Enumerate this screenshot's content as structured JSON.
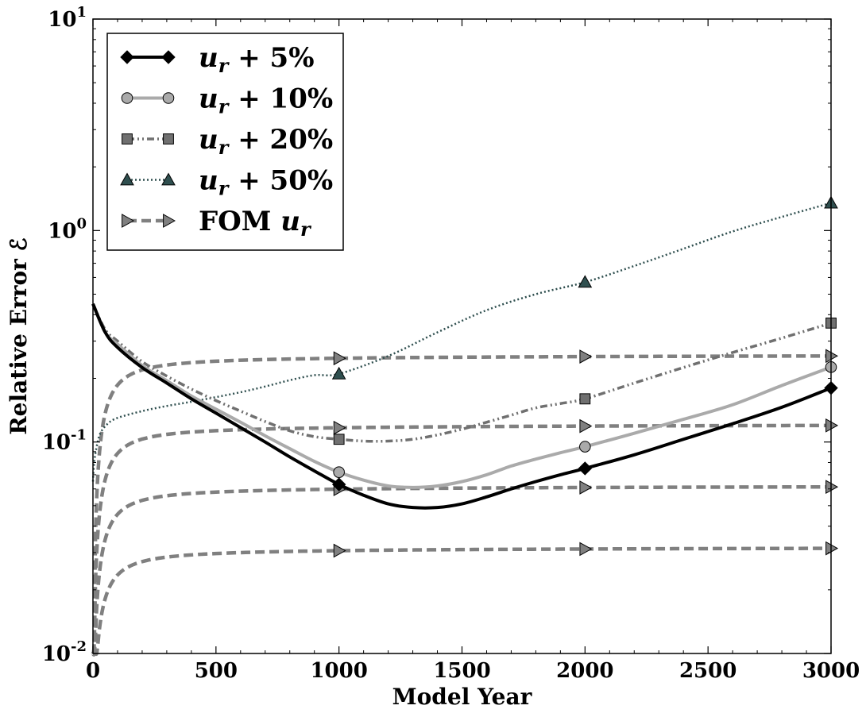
{
  "chart_data": {
    "type": "line",
    "xlabel": "Model Year",
    "ylabel": "Relative Error ℰ",
    "xlim": [
      0,
      3000
    ],
    "ylim": [
      0.01,
      10
    ],
    "yscale": "log",
    "grid": false,
    "legend_position": "top-left",
    "x_ticks": [
      "0",
      "500",
      "1000",
      "1500",
      "2000",
      "2500",
      "3000"
    ],
    "y_ticks": [
      {
        "base": "10",
        "exp": "-2"
      },
      {
        "base": "10",
        "exp": "-1"
      },
      {
        "base": "10",
        "exp": "0"
      },
      {
        "base": "10",
        "exp": "1"
      }
    ],
    "series": [
      {
        "name": "u_r + 5%",
        "label_parts": [
          "u",
          "r",
          " + 5%"
        ],
        "color": "#000000",
        "dash": "solid",
        "marker": "diamond",
        "x": [
          0,
          50,
          100,
          200,
          300,
          400,
          500,
          600,
          700,
          800,
          900,
          1000,
          1100,
          1200,
          1300,
          1400,
          1500,
          1600,
          1700,
          1800,
          1900,
          2000,
          2200,
          2400,
          2600,
          2800,
          3000
        ],
        "y": [
          0.45,
          0.33,
          0.28,
          0.225,
          0.19,
          0.16,
          0.137,
          0.117,
          0.1,
          0.085,
          0.073,
          0.063,
          0.056,
          0.051,
          0.049,
          0.049,
          0.051,
          0.055,
          0.06,
          0.065,
          0.07,
          0.075,
          0.087,
          0.103,
          0.122,
          0.146,
          0.18
        ],
        "markers_x": [
          1000,
          2000,
          3000
        ]
      },
      {
        "name": "u_r + 10%",
        "label_parts": [
          "u",
          "r",
          " + 10%"
        ],
        "color": "#aaaaaa",
        "dash": "solid",
        "marker": "circle",
        "x": [
          0,
          50,
          100,
          200,
          300,
          400,
          500,
          600,
          700,
          800,
          900,
          1000,
          1100,
          1200,
          1300,
          1400,
          1500,
          1600,
          1700,
          1800,
          1900,
          2000,
          2200,
          2400,
          2600,
          2800,
          3000
        ],
        "y": [
          0.45,
          0.33,
          0.29,
          0.23,
          0.195,
          0.165,
          0.143,
          0.124,
          0.107,
          0.093,
          0.081,
          0.072,
          0.066,
          0.062,
          0.061,
          0.062,
          0.065,
          0.07,
          0.077,
          0.083,
          0.089,
          0.095,
          0.11,
          0.128,
          0.15,
          0.185,
          0.226
        ],
        "markers_x": [
          1000,
          2000,
          3000
        ]
      },
      {
        "name": "u_r + 20%",
        "label_parts": [
          "u",
          "r",
          " + 20%"
        ],
        "color": "#707070",
        "dash": "dashdotdot",
        "marker": "square",
        "x": [
          0,
          50,
          100,
          200,
          300,
          400,
          500,
          600,
          700,
          800,
          900,
          1000,
          1100,
          1200,
          1300,
          1400,
          1500,
          1600,
          1700,
          1800,
          1900,
          2000,
          2200,
          2400,
          2600,
          2800,
          3000
        ],
        "y": [
          0.45,
          0.34,
          0.3,
          0.24,
          0.205,
          0.178,
          0.157,
          0.14,
          0.125,
          0.113,
          0.106,
          0.103,
          0.101,
          0.101,
          0.103,
          0.108,
          0.115,
          0.124,
          0.134,
          0.145,
          0.152,
          0.16,
          0.19,
          0.225,
          0.265,
          0.31,
          0.365
        ],
        "markers_x": [
          1000,
          2000,
          3000
        ]
      },
      {
        "name": "u_r + 50%",
        "label_parts": [
          "u",
          "r",
          " + 50%"
        ],
        "color": "#2f4f4f",
        "dash": "dotted",
        "marker": "triangle",
        "x": [
          0,
          5,
          15,
          30,
          60,
          100,
          200,
          300,
          400,
          500,
          600,
          700,
          800,
          900,
          1000,
          1200,
          1400,
          1600,
          1800,
          2000,
          2200,
          2400,
          2600,
          2800,
          3000
        ],
        "y": [
          0.065,
          0.08,
          0.095,
          0.11,
          0.122,
          0.13,
          0.14,
          0.148,
          0.155,
          0.163,
          0.172,
          0.183,
          0.196,
          0.207,
          0.21,
          0.255,
          0.33,
          0.42,
          0.5,
          0.57,
          0.68,
          0.82,
          0.99,
          1.16,
          1.35
        ],
        "markers_x": [
          1000,
          2000,
          3000
        ]
      },
      {
        "name": "FOM u_r",
        "label_parts": [
          "FOM ",
          "u",
          "r"
        ],
        "color": "#808080",
        "dash": "dashed",
        "marker": "triangle-right",
        "curves": [
          {
            "plateau": 0.26,
            "start": 0.05
          },
          {
            "plateau": 0.122,
            "start": 0.03
          },
          {
            "plateau": 0.0625,
            "start": 0.017
          },
          {
            "plateau": 0.032,
            "start": 0.01
          }
        ],
        "markers_x": [
          1000,
          2000,
          3000
        ]
      }
    ]
  }
}
